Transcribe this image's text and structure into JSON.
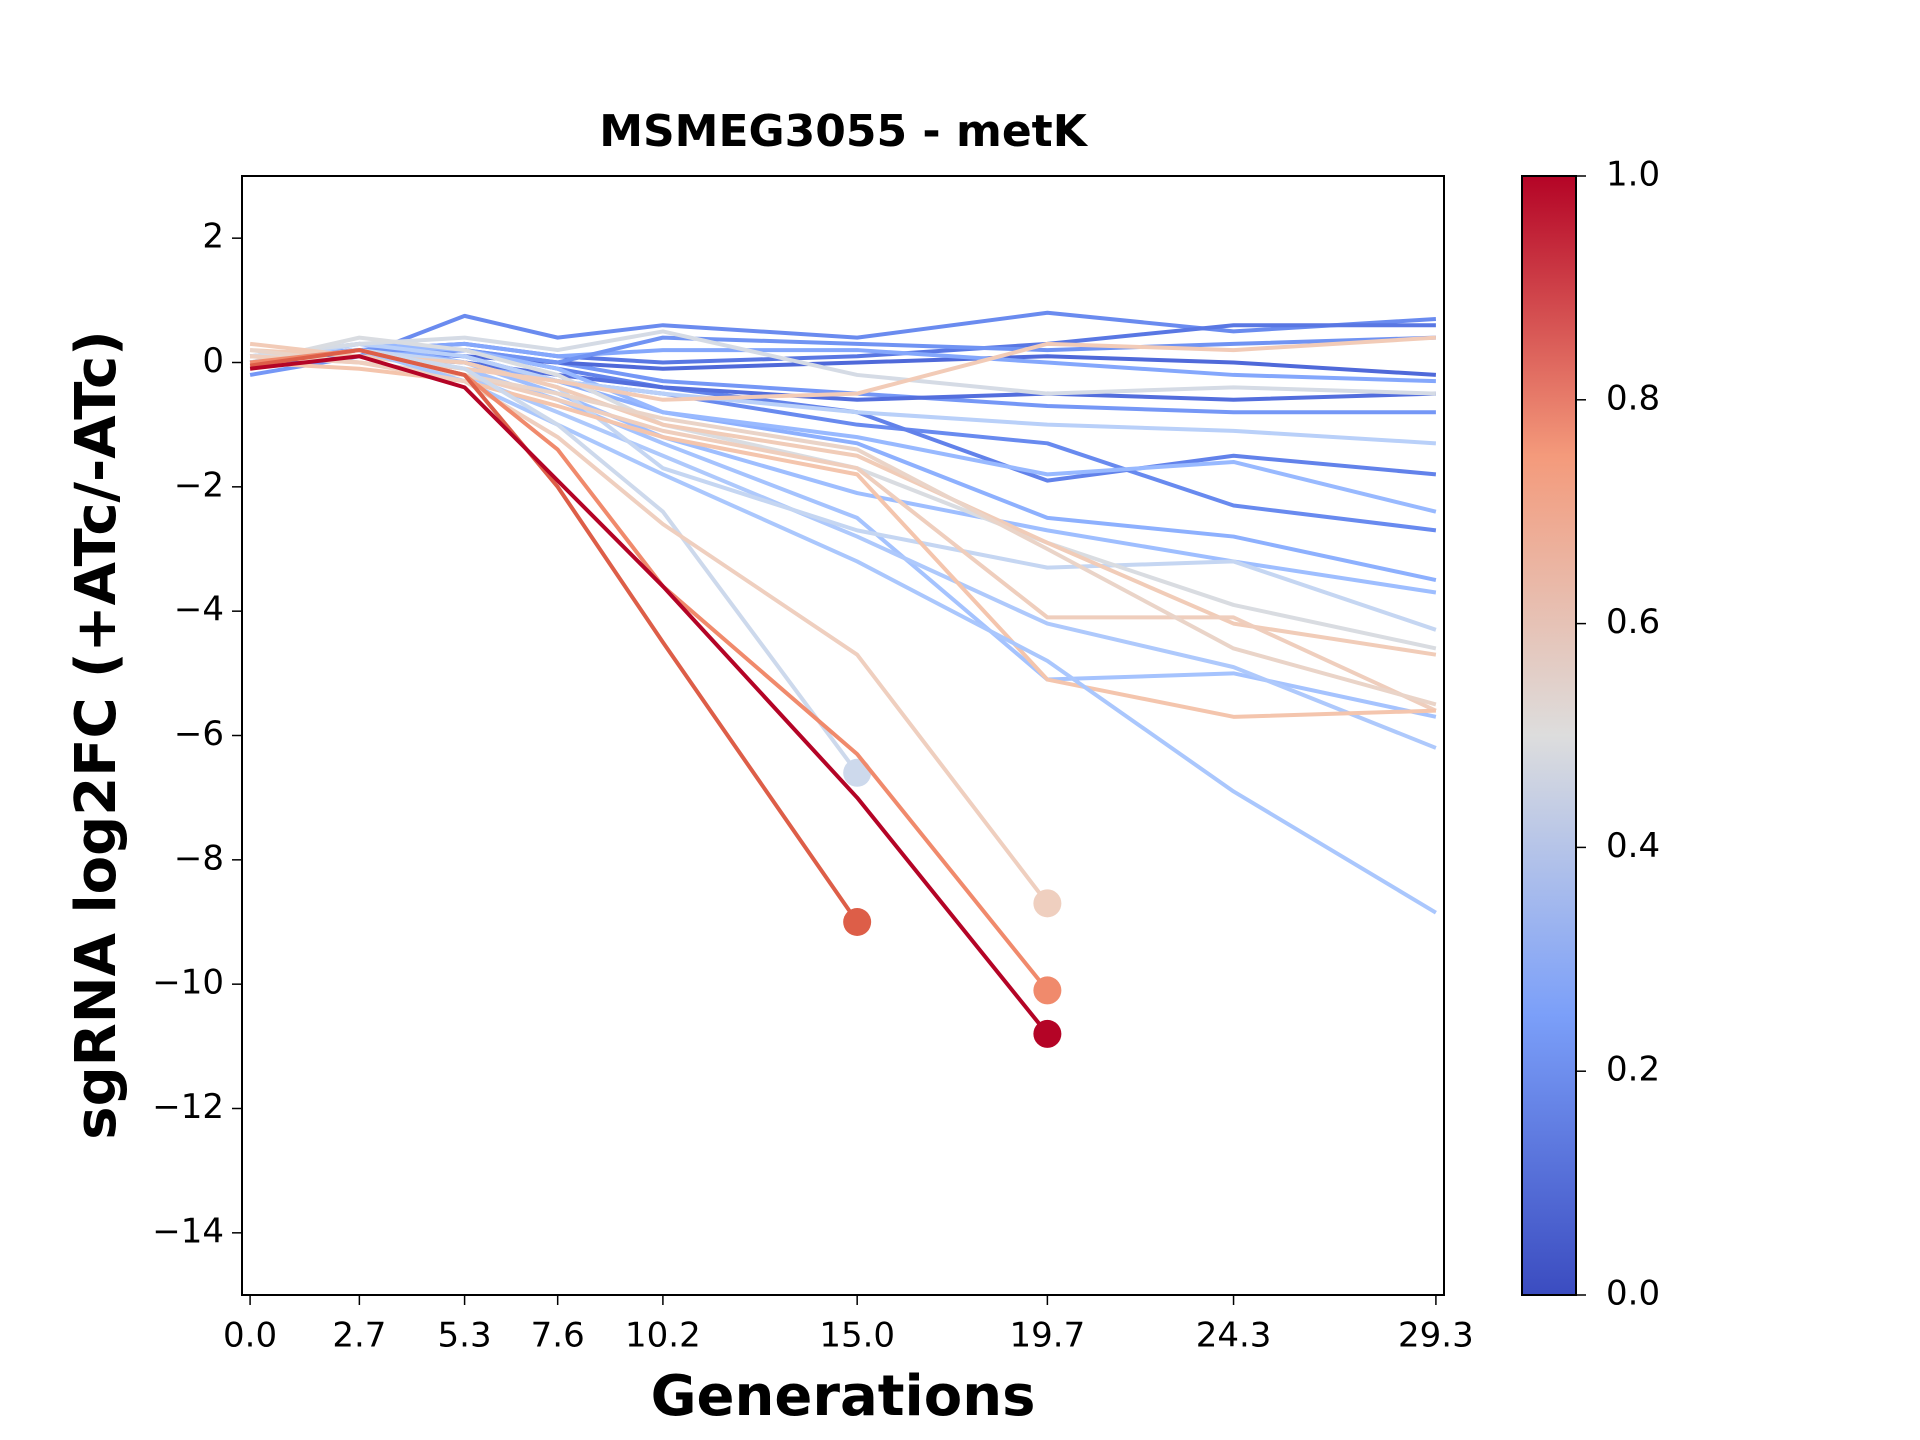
{
  "chart_data": {
    "type": "line",
    "title": "MSMEG3055 - metK",
    "xlabel": "Generations",
    "ylabel": "sgRNA log2FC (+ATc/-ATc)",
    "x": [
      0.0,
      2.7,
      5.3,
      7.6,
      10.2,
      15.0,
      19.7,
      24.3,
      29.3
    ],
    "xlim": [
      -0.2,
      29.5
    ],
    "xticks": [
      {
        "value": 0.0,
        "label": "0.0"
      },
      {
        "value": 2.7,
        "label": "2.7"
      },
      {
        "value": 5.3,
        "label": "5.3"
      },
      {
        "value": 7.6,
        "label": "7.6"
      },
      {
        "value": 10.2,
        "label": "10.2"
      },
      {
        "value": 15.0,
        "label": "15.0"
      },
      {
        "value": 19.7,
        "label": "19.7"
      },
      {
        "value": 24.3,
        "label": "24.3"
      },
      {
        "value": 29.3,
        "label": "29.3"
      }
    ],
    "ylim": [
      -15,
      3
    ],
    "yticks": [
      {
        "value": -14,
        "label": "−14"
      },
      {
        "value": -12,
        "label": "−12"
      },
      {
        "value": -10,
        "label": "−10"
      },
      {
        "value": -8,
        "label": "−8"
      },
      {
        "value": -6,
        "label": "−6"
      },
      {
        "value": -4,
        "label": "−4"
      },
      {
        "value": -2,
        "label": "−2"
      },
      0,
      2
    ],
    "end_marker": true,
    "colorbar": {
      "lim": [
        0,
        1
      ],
      "colors": [
        "#3b4cc0",
        "#7b9ff9",
        "#dddddd",
        "#f49a7b",
        "#b40426"
      ],
      "ticks": [
        {
          "value": 0,
          "label": "0.0"
        },
        {
          "value": 0.2,
          "label": "0.2"
        },
        {
          "value": 0.4,
          "label": "0.4"
        },
        {
          "value": 0.6,
          "label": "0.6"
        },
        {
          "value": 0.8,
          "label": "0.8"
        },
        {
          "value": 1,
          "label": "1.0"
        }
      ]
    },
    "series": [
      {
        "color": "#6a8bef",
        "values": [
          0,
          0.1,
          0.75,
          0.4,
          0.6,
          0.4,
          0.8,
          0.5,
          0.7
        ]
      },
      {
        "color": "#5977e3",
        "values": [
          0,
          0.2,
          0.3,
          0.1,
          0,
          0.1,
          0.3,
          0.6,
          0.6
        ]
      },
      {
        "color": "#7597f6",
        "values": [
          -0.2,
          0.1,
          0.2,
          0.0,
          -0.3,
          -0.5,
          -0.7,
          -0.8,
          -0.8
        ]
      },
      {
        "color": "#4f69d9",
        "values": [
          0.1,
          0.2,
          0.1,
          0,
          -0.1,
          0,
          0.1,
          0,
          -0.2
        ]
      },
      {
        "color": "#688aef",
        "values": [
          0,
          0.2,
          0.1,
          -0.3,
          -0.5,
          -1.0,
          -1.3,
          -2.3,
          -2.7
        ]
      },
      {
        "color": "#6282ea",
        "values": [
          0,
          0.1,
          0.2,
          -0.1,
          -0.4,
          -0.8,
          -1.9,
          -1.5,
          -1.8
        ]
      },
      {
        "color": "#8db0fe",
        "values": [
          0.1,
          0.3,
          0.0,
          -0.3,
          -0.8,
          -1.3,
          -2.5,
          -2.8,
          -3.5
        ]
      },
      {
        "color": "#9ebeff",
        "values": [
          0,
          0.2,
          0,
          -0.5,
          -1.2,
          -2.1,
          -2.7,
          -3.2,
          -3.7
        ]
      },
      {
        "color": "#a5c3fe",
        "values": [
          0,
          0.2,
          -0.1,
          -0.6,
          -1.3,
          -2.5,
          -5.1,
          -5.0,
          -5.7
        ]
      },
      {
        "color": "#aec9fc",
        "values": [
          0,
          0.2,
          -0.2,
          -0.8,
          -1.5,
          -2.8,
          -4.2,
          -4.9,
          -6.2
        ]
      },
      {
        "color": "#84a7fc",
        "values": [
          0.1,
          0.2,
          0.3,
          0.1,
          0.2,
          0.2,
          0.0,
          -0.2,
          -0.3
        ]
      },
      {
        "color": "#7093f3",
        "values": [
          0,
          0.2,
          0.2,
          0,
          0.4,
          0.3,
          0.2,
          0.3,
          0.4
        ]
      },
      {
        "color": "#536edd",
        "values": [
          0,
          0.1,
          0,
          -0.2,
          -0.4,
          -0.6,
          -0.5,
          -0.6,
          -0.5
        ]
      },
      {
        "color": "#98b9ff",
        "values": [
          0,
          0.3,
          0.2,
          -0.1,
          -0.8,
          -1.2,
          -1.8,
          -1.6,
          -2.4
        ]
      },
      {
        "color": "#b9d0f9",
        "values": [
          0,
          0.3,
          0.1,
          -0.3,
          -0.5,
          -0.8,
          -1.0,
          -1.1,
          -1.3
        ]
      },
      {
        "color": "#c5d6f2",
        "values": [
          0,
          0.2,
          0,
          -0.4,
          -1.7,
          -2.7,
          -3.3,
          -3.2,
          -4.3
        ]
      },
      {
        "color": "#d5dbe5",
        "values": [
          0.1,
          0.3,
          0.4,
          0.2,
          0.5,
          -0.2,
          -0.5,
          -0.4,
          -0.5
        ]
      },
      {
        "color": "#d9dce1",
        "values": [
          0,
          0.4,
          0.2,
          -0.2,
          -1.0,
          -1.7,
          -2.9,
          -3.9,
          -4.6
        ]
      },
      {
        "color": "#f2cbb7",
        "values": [
          0.3,
          0.1,
          -0.1,
          -0.3,
          -0.6,
          -0.5,
          0.3,
          0.2,
          0.4
        ]
      },
      {
        "color": "#f1ccb8",
        "values": [
          0.2,
          0.1,
          0,
          -0.4,
          -1.0,
          -1.5,
          -2.9,
          -4.2,
          -4.7
        ]
      },
      {
        "color": "#efcebd",
        "values": [
          0.1,
          0,
          -0.2,
          -0.6,
          -1.1,
          -1.7,
          -4.1,
          -4.1,
          -5.6
        ]
      },
      {
        "color": "#f4c5ad",
        "values": [
          0,
          -0.1,
          -0.3,
          -0.7,
          -1.2,
          -1.8,
          -5.1,
          -5.7,
          -5.6
        ]
      },
      {
        "color": "#ead4c8",
        "values": [
          0.2,
          0.0,
          -0.2,
          -0.5,
          -0.9,
          -1.4,
          -3.0,
          -4.6,
          -5.5
        ]
      },
      {
        "color": "#aac7fd",
        "values": [
          0,
          0.2,
          -0.3,
          -1.0,
          -1.8,
          -3.2,
          -4.8,
          -6.9,
          -8.85
        ]
      },
      {
        "color": "#cdd9ec",
        "values": [
          0,
          0.2,
          -0.1,
          -1.0,
          -2.4,
          -6.6,
          null,
          null,
          null
        ]
      },
      {
        "color": "#efcfbf",
        "values": [
          0.1,
          0.0,
          -0.3,
          -1.2,
          -2.6,
          -4.7,
          -8.7,
          null,
          null
        ]
      },
      {
        "color": "#f08a6c",
        "values": [
          0,
          0.2,
          -0.2,
          -1.4,
          -3.6,
          -6.3,
          -10.1,
          null,
          null
        ]
      },
      {
        "color": "#dd5e48",
        "values": [
          -0.05,
          0.2,
          -0.2,
          -2.0,
          -4.5,
          -9.0,
          null,
          null,
          null
        ]
      },
      {
        "color": "#b40426",
        "values": [
          -0.1,
          0.1,
          -0.4,
          -1.9,
          -3.6,
          -7.0,
          -10.8,
          null,
          null
        ]
      }
    ]
  }
}
